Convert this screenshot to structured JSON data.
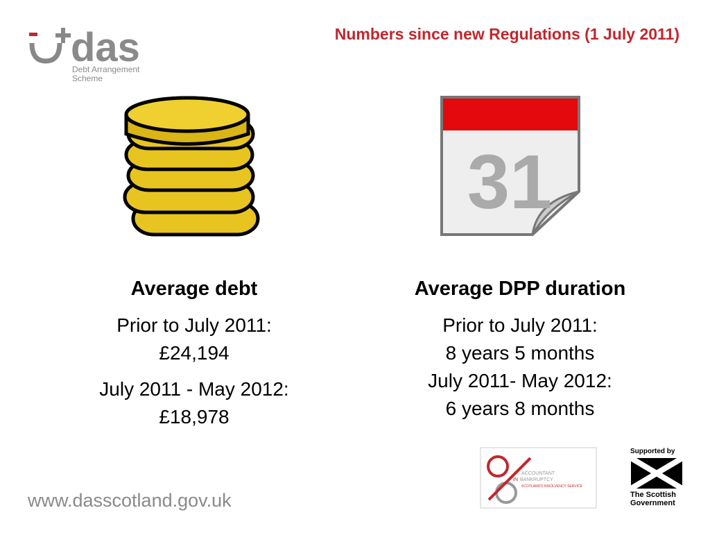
{
  "header": {
    "logo": {
      "name": "das",
      "line1": "Debt Arrangement",
      "line2": "Scheme"
    },
    "title": "Numbers since new Regulations (1 July 2011)"
  },
  "calendar_day": "31",
  "columns": [
    {
      "heading": "Average debt",
      "items": [
        {
          "label": "Prior to July 2011:",
          "value": "£24,194"
        },
        {
          "label": "July 2011 - May 2012:",
          "value": "£18,978"
        }
      ]
    },
    {
      "heading": "Average DPP duration",
      "items": [
        {
          "label": "Prior to July 2011:",
          "value": "8 years 5 months"
        },
        {
          "label": "July 2011- May 2012:",
          "value": "6 years 8 months"
        }
      ]
    }
  ],
  "footer": {
    "url": "www.dasscotland.gov.uk",
    "aib": {
      "line1": "ACCOUNTANT",
      "in": "IN",
      "line2": "BANKRUPTCY",
      "line3": "SCOTLAND'S INSOLVENCY SERVICE"
    },
    "scottish": {
      "top": "Supported by",
      "line1": "The Scottish",
      "line2": "Government"
    }
  }
}
